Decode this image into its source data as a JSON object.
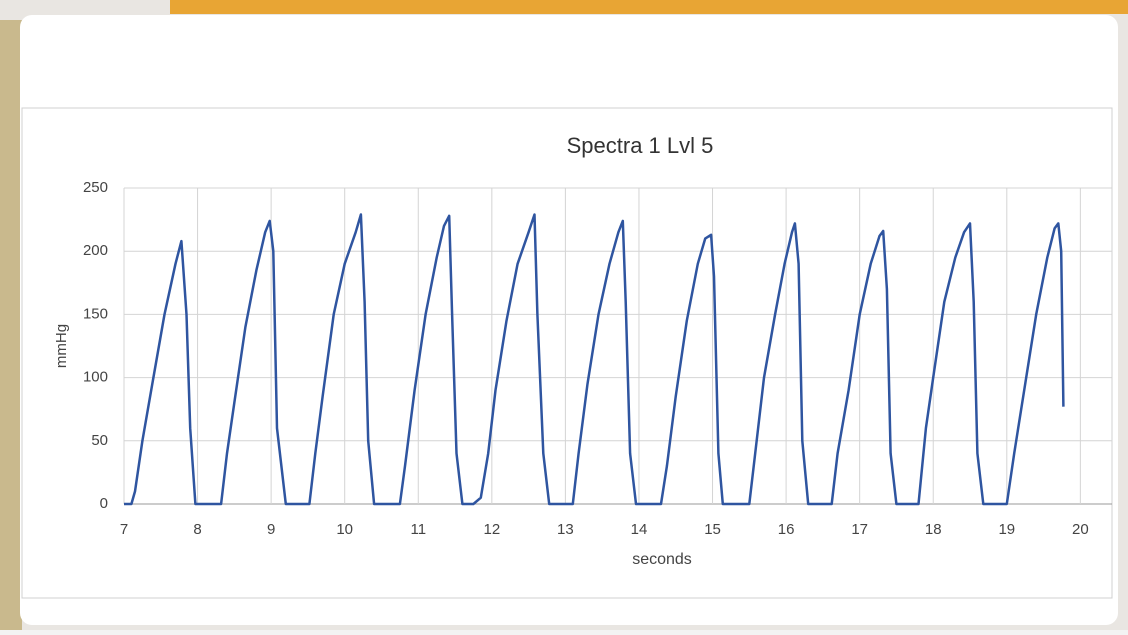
{
  "chart_data": {
    "type": "line",
    "title": "Spectra 1 Lvl 5",
    "x_label": "seconds",
    "y_label": "mmHg",
    "series": [
      {
        "name": "Spectra 1 Lvl 5",
        "color": "#2f55a0",
        "x": [
          7.0,
          7.1,
          7.15,
          7.25,
          7.4,
          7.55,
          7.7,
          7.78,
          7.85,
          7.9,
          7.97,
          8.32,
          8.4,
          8.5,
          8.65,
          8.8,
          8.92,
          8.98,
          9.03,
          9.08,
          9.2,
          9.52,
          9.6,
          9.7,
          9.85,
          10.0,
          10.15,
          10.22,
          10.27,
          10.32,
          10.4,
          10.75,
          10.82,
          10.95,
          11.1,
          11.25,
          11.35,
          11.42,
          11.46,
          11.52,
          11.6,
          11.75,
          11.85,
          11.95,
          12.05,
          12.2,
          12.35,
          12.5,
          12.58,
          12.62,
          12.7,
          12.78,
          13.1,
          13.18,
          13.3,
          13.45,
          13.6,
          13.72,
          13.78,
          13.82,
          13.88,
          13.96,
          14.3,
          14.38,
          14.5,
          14.65,
          14.8,
          14.9,
          14.98,
          15.02,
          15.08,
          15.14,
          15.5,
          15.58,
          15.7,
          15.85,
          15.98,
          16.08,
          16.12,
          16.17,
          16.22,
          16.3,
          16.62,
          16.7,
          16.85,
          17.0,
          17.15,
          17.27,
          17.32,
          17.37,
          17.42,
          17.5,
          17.8,
          17.9,
          18.0,
          18.15,
          18.3,
          18.42,
          18.5,
          18.55,
          18.6,
          18.68,
          19.0,
          19.1,
          19.25,
          19.4,
          19.55,
          19.65,
          19.7,
          19.74,
          19.77
        ],
        "values": [
          0,
          0,
          10,
          50,
          100,
          150,
          190,
          208,
          150,
          60,
          0,
          0,
          40,
          80,
          140,
          185,
          215,
          224,
          200,
          60,
          0,
          0,
          40,
          85,
          150,
          190,
          215,
          229,
          160,
          50,
          0,
          0,
          30,
          90,
          150,
          195,
          220,
          228,
          150,
          40,
          0,
          0,
          5,
          40,
          90,
          145,
          190,
          215,
          229,
          150,
          40,
          0,
          0,
          40,
          95,
          150,
          190,
          215,
          224,
          160,
          40,
          0,
          0,
          30,
          85,
          145,
          190,
          210,
          213,
          180,
          40,
          0,
          0,
          40,
          100,
          150,
          190,
          215,
          222,
          190,
          50,
          0,
          0,
          40,
          90,
          150,
          190,
          212,
          216,
          170,
          40,
          0,
          0,
          60,
          100,
          160,
          195,
          215,
          222,
          160,
          40,
          0,
          0,
          40,
          95,
          150,
          195,
          218,
          222,
          200,
          77
        ]
      }
    ],
    "xlim": [
      7,
      20.43
    ],
    "xticks": [
      7,
      8,
      9,
      10,
      11,
      12,
      13,
      14,
      15,
      16,
      17,
      18,
      19,
      20
    ],
    "ylim": [
      0,
      250
    ],
    "yticks": [
      0,
      50,
      100,
      150,
      200,
      250
    ],
    "grid": true
  }
}
